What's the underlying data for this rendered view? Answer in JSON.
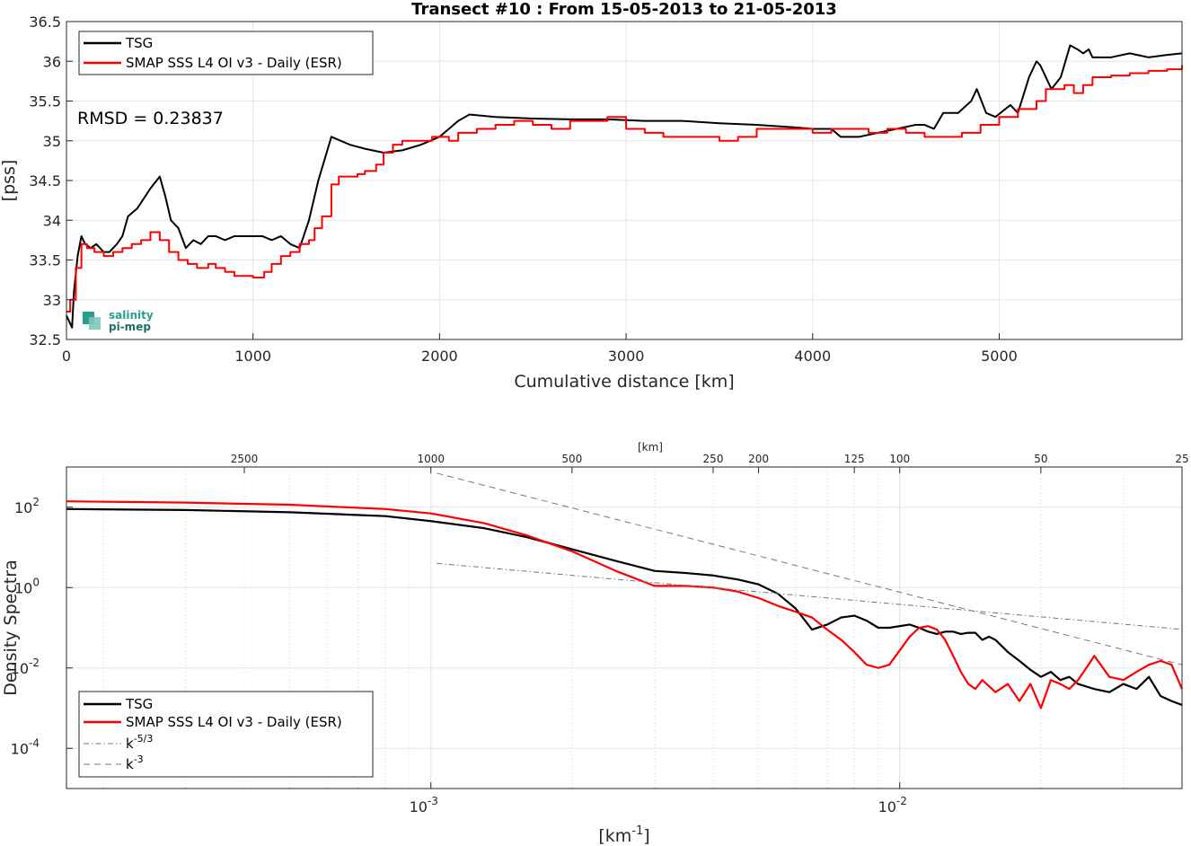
{
  "chart_data": [
    {
      "type": "line",
      "title": "Transect #10 : From 15-05-2013 to 21-05-2013",
      "xlabel": "Cumulative distance [km]",
      "ylabel": "[pss]",
      "xlim": [
        0,
        5980
      ],
      "ylim": [
        32.5,
        36.5
      ],
      "xticks": [
        "0",
        "1000",
        "2000",
        "3000",
        "4000",
        "5000"
      ],
      "yticks": [
        "32.5",
        "33",
        "33.5",
        "34",
        "34.5",
        "35",
        "35.5",
        "36",
        "36.5"
      ],
      "grid": true,
      "legend_position": "top-left",
      "annotation": "RMSD = 0.23837",
      "logo": {
        "line1": "salinity",
        "line2": "pi-mep"
      },
      "series": [
        {
          "name": "TSG",
          "color": "#000000",
          "x": [
            0,
            30,
            40,
            60,
            80,
            100,
            130,
            160,
            200,
            230,
            270,
            300,
            330,
            380,
            450,
            500,
            530,
            560,
            600,
            640,
            680,
            720,
            760,
            800,
            850,
            900,
            950,
            1000,
            1050,
            1100,
            1150,
            1200,
            1250,
            1300,
            1350,
            1420,
            1470,
            1520,
            1600,
            1700,
            1800,
            1900,
            2000,
            2100,
            2160,
            2300,
            2500,
            2700,
            2900,
            3100,
            3300,
            3500,
            3700,
            3900,
            4000,
            4100,
            4150,
            4250,
            4350,
            4450,
            4550,
            4600,
            4650,
            4700,
            4780,
            4850,
            4880,
            4930,
            4980,
            5060,
            5100,
            5160,
            5200,
            5220,
            5280,
            5330,
            5380,
            5420,
            5450,
            5480,
            5500,
            5550,
            5600,
            5700,
            5800,
            5900,
            5980
          ],
          "y": [
            32.8,
            32.65,
            33.1,
            33.55,
            33.8,
            33.7,
            33.65,
            33.7,
            33.6,
            33.6,
            33.7,
            33.8,
            34.05,
            34.15,
            34.4,
            34.55,
            34.3,
            34.0,
            33.9,
            33.65,
            33.75,
            33.7,
            33.8,
            33.8,
            33.75,
            33.8,
            33.8,
            33.8,
            33.8,
            33.75,
            33.8,
            33.7,
            33.65,
            34.0,
            34.5,
            35.05,
            35.0,
            34.95,
            34.9,
            34.85,
            34.88,
            34.95,
            35.05,
            35.25,
            35.33,
            35.3,
            35.28,
            35.27,
            35.27,
            35.25,
            35.25,
            35.22,
            35.2,
            35.17,
            35.15,
            35.15,
            35.05,
            35.05,
            35.1,
            35.15,
            35.2,
            35.2,
            35.15,
            35.35,
            35.35,
            35.5,
            35.65,
            35.35,
            35.3,
            35.45,
            35.35,
            35.8,
            36.0,
            35.95,
            35.65,
            35.8,
            36.2,
            36.15,
            36.1,
            36.15,
            36.05,
            36.05,
            36.05,
            36.1,
            36.05,
            36.08,
            36.1
          ]
        },
        {
          "name": "SMAP SSS L4 OI v3 - Daily (ESR)",
          "color": "#ff0000",
          "x": [
            0,
            20,
            50,
            80,
            110,
            150,
            200,
            250,
            300,
            350,
            400,
            450,
            500,
            550,
            600,
            650,
            700,
            760,
            800,
            850,
            900,
            960,
            1000,
            1060,
            1100,
            1150,
            1200,
            1250,
            1300,
            1330,
            1370,
            1420,
            1460,
            1500,
            1560,
            1600,
            1660,
            1700,
            1750,
            1800,
            1870,
            1920,
            1960,
            2050,
            2100,
            2200,
            2300,
            2400,
            2500,
            2600,
            2700,
            2800,
            2900,
            3000,
            3100,
            3200,
            3300,
            3400,
            3500,
            3600,
            3700,
            3800,
            3900,
            4000,
            4100,
            4200,
            4300,
            4400,
            4500,
            4600,
            4700,
            4800,
            4900,
            5000,
            5100,
            5150,
            5200,
            5250,
            5300,
            5350,
            5400,
            5450,
            5500,
            5600,
            5700,
            5800,
            5900,
            5980
          ],
          "y": [
            32.85,
            33.0,
            33.4,
            33.7,
            33.65,
            33.6,
            33.55,
            33.6,
            33.65,
            33.7,
            33.75,
            33.85,
            33.75,
            33.6,
            33.5,
            33.45,
            33.4,
            33.45,
            33.4,
            33.35,
            33.3,
            33.3,
            33.28,
            33.35,
            33.45,
            33.55,
            33.6,
            33.7,
            33.75,
            33.9,
            34.05,
            34.45,
            34.55,
            34.55,
            34.58,
            34.62,
            34.7,
            34.85,
            34.95,
            35.0,
            35.0,
            35.0,
            35.05,
            35.0,
            35.1,
            35.15,
            35.2,
            35.25,
            35.2,
            35.15,
            35.25,
            35.25,
            35.3,
            35.15,
            35.1,
            35.05,
            35.05,
            35.05,
            35.0,
            35.05,
            35.15,
            35.15,
            35.15,
            35.1,
            35.15,
            35.15,
            35.1,
            35.15,
            35.1,
            35.05,
            35.05,
            35.1,
            35.2,
            35.3,
            35.4,
            35.4,
            35.5,
            35.65,
            35.65,
            35.7,
            35.6,
            35.7,
            35.8,
            35.82,
            35.85,
            35.88,
            35.9,
            35.95
          ]
        }
      ]
    },
    {
      "type": "line",
      "title": "",
      "xlabel": "[km-1]",
      "ylabel": "Density Spectra",
      "top_axis_label": "[km]",
      "xscale": "log",
      "yscale": "log",
      "xlim": [
        0.000167,
        0.04
      ],
      "ylim": [
        1e-05,
        1000
      ],
      "xtick_labels": [
        "10-3",
        "10-2"
      ],
      "ytick_labels": [
        "10-4",
        "10-2",
        "100",
        "102"
      ],
      "top_ticks": [
        {
          "label": "2500",
          "value": 2500
        },
        {
          "label": "1000",
          "value": 1000
        },
        {
          "label": "500",
          "value": 500
        },
        {
          "label": "250",
          "value": 250
        },
        {
          "label": "200",
          "value": 200
        },
        {
          "label": "125",
          "value": 125
        },
        {
          "label": "100",
          "value": 100
        },
        {
          "label": "50",
          "value": 50
        },
        {
          "label": "25",
          "value": 25
        }
      ],
      "grid": true,
      "legend_position": "bottom-left",
      "legend": [
        {
          "name": "TSG",
          "color": "#000000",
          "style": "solid"
        },
        {
          "name": "SMAP SSS L4 OI v3 - Daily (ESR)",
          "color": "#ff0000",
          "style": "solid"
        },
        {
          "name": "k-5/3",
          "color": "#777777",
          "style": "dashdot"
        },
        {
          "name": "k-3",
          "color": "#777777",
          "style": "dashed"
        }
      ],
      "series": [
        {
          "name": "TSG",
          "color": "#000000",
          "x": [
            0.000167,
            0.0003,
            0.0005,
            0.0008,
            0.001,
            0.0013,
            0.0016,
            0.002,
            0.0025,
            0.003,
            0.0035,
            0.004,
            0.0045,
            0.005,
            0.0055,
            0.006,
            0.0065,
            0.007,
            0.0075,
            0.008,
            0.0085,
            0.009,
            0.0095,
            0.0105,
            0.011,
            0.0115,
            0.012,
            0.0125,
            0.013,
            0.0135,
            0.014,
            0.0145,
            0.015,
            0.0155,
            0.016,
            0.017,
            0.018,
            0.019,
            0.02,
            0.021,
            0.022,
            0.023,
            0.024,
            0.026,
            0.028,
            0.03,
            0.032,
            0.034,
            0.036,
            0.038,
            0.04
          ],
          "y": [
            90,
            85,
            75,
            60,
            45,
            30,
            18,
            9,
            4.5,
            2.6,
            2.3,
            2.0,
            1.6,
            1.2,
            0.7,
            0.3,
            0.09,
            0.12,
            0.18,
            0.2,
            0.15,
            0.1,
            0.1,
            0.12,
            0.1,
            0.08,
            0.07,
            0.08,
            0.08,
            0.07,
            0.075,
            0.075,
            0.05,
            0.06,
            0.05,
            0.025,
            0.015,
            0.009,
            0.006,
            0.008,
            0.005,
            0.006,
            0.004,
            0.003,
            0.0025,
            0.004,
            0.003,
            0.006,
            0.002,
            0.0015,
            0.0012
          ]
        },
        {
          "name": "SMAP SSS L4 OI v3 - Daily (ESR)",
          "color": "#ff0000",
          "x": [
            0.000167,
            0.0003,
            0.0005,
            0.0008,
            0.001,
            0.0013,
            0.0016,
            0.002,
            0.0025,
            0.003,
            0.0035,
            0.004,
            0.0045,
            0.005,
            0.0055,
            0.006,
            0.0065,
            0.007,
            0.0075,
            0.008,
            0.0085,
            0.009,
            0.0095,
            0.0105,
            0.011,
            0.0115,
            0.012,
            0.0125,
            0.013,
            0.0135,
            0.014,
            0.0145,
            0.015,
            0.016,
            0.017,
            0.018,
            0.019,
            0.02,
            0.021,
            0.022,
            0.023,
            0.024,
            0.025,
            0.026,
            0.028,
            0.03,
            0.032,
            0.034,
            0.036,
            0.038,
            0.04
          ],
          "y": [
            140,
            130,
            115,
            90,
            70,
            40,
            20,
            8,
            2.5,
            1.1,
            1.1,
            1.0,
            0.8,
            0.55,
            0.35,
            0.25,
            0.18,
            0.09,
            0.05,
            0.025,
            0.012,
            0.01,
            0.012,
            0.06,
            0.1,
            0.11,
            0.09,
            0.05,
            0.02,
            0.008,
            0.004,
            0.003,
            0.005,
            0.0025,
            0.004,
            0.0015,
            0.004,
            0.001,
            0.005,
            0.004,
            0.003,
            0.005,
            0.01,
            0.02,
            0.006,
            0.005,
            0.008,
            0.012,
            0.015,
            0.012,
            0.003
          ]
        },
        {
          "name": "k-5/3",
          "color": "#777777",
          "dash": "dashdot",
          "x": [
            0.00103,
            0.04
          ],
          "y": [
            4.0,
            0.0912
          ]
        },
        {
          "name": "k-3",
          "color": "#777777",
          "dash": "dashed",
          "x": [
            0.00103,
            0.04
          ],
          "y": [
            700,
            0.012
          ]
        }
      ]
    }
  ]
}
